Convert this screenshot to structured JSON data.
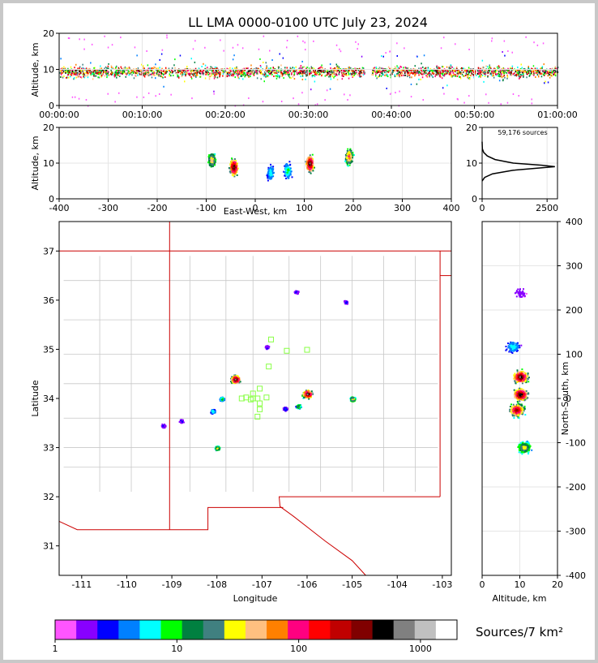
{
  "chart_data": [
    {
      "panel": "altitude-time",
      "type": "scatter",
      "title": "LL LMA 0000-0100 UTC July 23, 2024",
      "ylabel": "Altitude, km",
      "xlabel": "",
      "xticks": [
        "00:00:00",
        "00:10:00",
        "00:20:00",
        "00:30:00",
        "00:40:00",
        "00:50:00",
        "01:00:00"
      ],
      "xlim_minutes": [
        0,
        60
      ],
      "ylim": [
        0,
        20
      ],
      "yticks": [
        0,
        10,
        20
      ],
      "gap_minutes": [
        36.8,
        37.6
      ],
      "description": "dense band of sources 4-14 km throughout the hour"
    },
    {
      "panel": "altitude-east-west",
      "type": "scatter",
      "ylabel": "Altitude, km",
      "xlabel": "East-West, km",
      "xlim": [
        -400,
        400
      ],
      "ylim": [
        0,
        20
      ],
      "xticks": [
        -400,
        -300,
        -200,
        -100,
        0,
        100,
        200,
        300,
        400
      ],
      "yticks": [
        0,
        10,
        20
      ],
      "clusters": [
        {
          "x": -90,
          "y": 11,
          "strength": 0.6
        },
        {
          "x": -45,
          "y": 9,
          "strength": 1.0
        },
        {
          "x": 30,
          "y": 7.5,
          "strength": 0.3
        },
        {
          "x": 65,
          "y": 8,
          "strength": 0.35
        },
        {
          "x": 110,
          "y": 10,
          "strength": 1.0
        },
        {
          "x": 190,
          "y": 12,
          "strength": 0.7
        }
      ]
    },
    {
      "panel": "altitude-histogram",
      "type": "line",
      "annotation": "59,176 sources",
      "xlim": [
        0,
        2900
      ],
      "xticks": [
        0,
        2500
      ],
      "ylim": [
        0,
        20
      ],
      "yticks": [
        0,
        10,
        20
      ],
      "profile": [
        [
          0,
          5
        ],
        [
          100,
          6
        ],
        [
          400,
          7
        ],
        [
          1200,
          8
        ],
        [
          2300,
          8.7
        ],
        [
          2800,
          9
        ],
        [
          2300,
          9.4
        ],
        [
          1200,
          10
        ],
        [
          500,
          11
        ],
        [
          200,
          12
        ],
        [
          60,
          13
        ],
        [
          10,
          14
        ],
        [
          0,
          16
        ]
      ]
    },
    {
      "panel": "plan-view",
      "type": "scatter",
      "xlabel": "Longitude",
      "ylabel": "Latitude",
      "xlim": [
        -111.5,
        -102.8
      ],
      "ylim": [
        30.4,
        37.6
      ],
      "xticks": [
        -111,
        -110,
        -109,
        -108,
        -107,
        -106,
        -105,
        -104,
        -103
      ],
      "yticks": [
        31,
        32,
        33,
        34,
        35,
        36,
        37
      ],
      "clusters": [
        {
          "lon": -107.6,
          "lat": 34.4,
          "strength": 1.0
        },
        {
          "lon": -107.9,
          "lat": 34.0,
          "strength": 0.4
        },
        {
          "lon": -108.1,
          "lat": 33.75,
          "strength": 0.35
        },
        {
          "lon": -108.0,
          "lat": 33.0,
          "strength": 0.55
        },
        {
          "lon": -106.0,
          "lat": 34.1,
          "strength": 1.0
        },
        {
          "lon": -106.2,
          "lat": 33.85,
          "strength": 0.5
        },
        {
          "lon": -105.0,
          "lat": 34.0,
          "strength": 0.6
        },
        {
          "lon": -106.5,
          "lat": 33.8,
          "strength": 0.2
        },
        {
          "lon": -106.9,
          "lat": 35.05,
          "strength": 0.15
        },
        {
          "lon": -105.15,
          "lat": 35.97,
          "strength": 0.1
        },
        {
          "lon": -106.25,
          "lat": 36.18,
          "strength": 0.1
        },
        {
          "lon": -109.2,
          "lat": 33.45,
          "strength": 0.12
        },
        {
          "lon": -108.8,
          "lat": 33.55,
          "strength": 0.08
        }
      ],
      "stations": [
        [
          -106.8,
          35.2
        ],
        [
          -106.45,
          34.97
        ],
        [
          -106.0,
          34.99
        ],
        [
          -106.85,
          34.65
        ],
        [
          -107.05,
          34.2
        ],
        [
          -107.2,
          34.1
        ],
        [
          -107.1,
          34.0
        ],
        [
          -107.05,
          33.9
        ],
        [
          -107.05,
          33.78
        ],
        [
          -107.1,
          33.63
        ],
        [
          -107.2,
          34.0
        ],
        [
          -107.35,
          34.02
        ],
        [
          -107.45,
          34.0
        ],
        [
          -106.9,
          34.02
        ],
        [
          -107.25,
          33.98
        ]
      ]
    },
    {
      "panel": "north-south-altitude",
      "type": "scatter",
      "xlabel": "Altitude, km",
      "ylabel": "North-South, km",
      "xlim": [
        0,
        20
      ],
      "ylim": [
        -400,
        400
      ],
      "xticks": [
        0,
        10,
        20
      ],
      "yticks": [
        -400,
        -300,
        -200,
        -100,
        0,
        100,
        200,
        300,
        400
      ],
      "clusters": [
        {
          "alt": 8,
          "ns": 118,
          "strength": 0.3
        },
        {
          "alt": 10,
          "ns": 50,
          "strength": 1.0
        },
        {
          "alt": 10,
          "ns": 10,
          "strength": 1.0
        },
        {
          "alt": 9,
          "ns": -25,
          "strength": 0.9
        },
        {
          "alt": 11,
          "ns": -110,
          "strength": 0.55
        },
        {
          "alt": 10,
          "ns": 240,
          "strength": 0.05
        }
      ]
    }
  ],
  "colorbar": {
    "label": "Sources/7 km²",
    "scale": "log",
    "ticks": [
      "1",
      "10",
      "100",
      "1000"
    ],
    "colors": [
      "#ff55ff",
      "#8800ff",
      "#0000ff",
      "#0080ff",
      "#00ffff",
      "#00ff00",
      "#008040",
      "#408080",
      "#ffff00",
      "#ffc080",
      "#ff8000",
      "#ff0080",
      "#ff0000",
      "#c00000",
      "#800000",
      "#000000",
      "#808080",
      "#c0c0c0",
      "#ffffff"
    ]
  },
  "map": {
    "state_border_color": "#cc0000",
    "county_line_color": "#c8c8c8",
    "station_color": "#88ff44"
  }
}
